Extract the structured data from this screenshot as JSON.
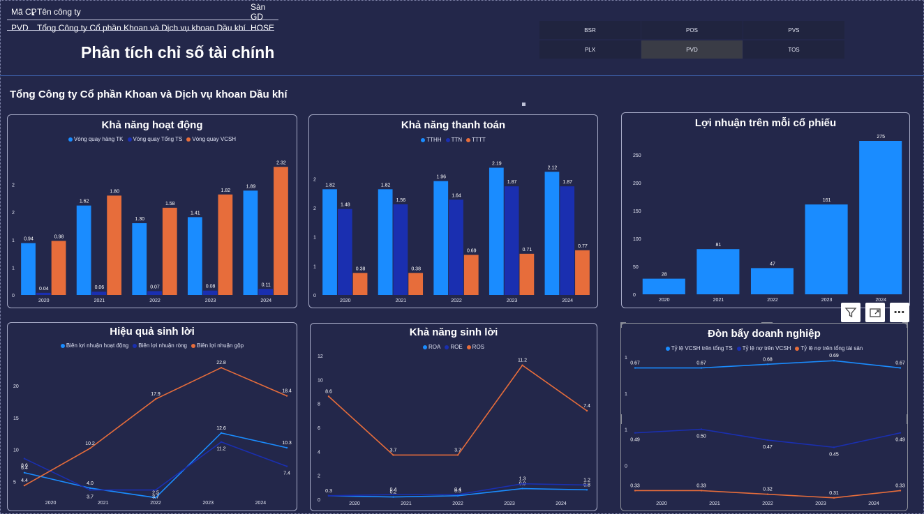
{
  "header": {
    "columns": [
      "Mã CP",
      "Tên công ty",
      "Sàn GD"
    ],
    "row": [
      "PVD",
      "Tổng Công ty Cổ phần Khoan và Dịch vụ khoan Dầu khí",
      "HOSE"
    ]
  },
  "page_title": "Phân tích chỉ số tài chính",
  "slicer": {
    "items": [
      "BSR",
      "POS",
      "PVS",
      "PLX",
      "PVD",
      "TOS"
    ],
    "selected": "PVD"
  },
  "company_name": "Tổng Công ty Cổ phần Khoan và Dịch vụ khoan Dầu khí",
  "colors": {
    "background": "#23274a",
    "light_blue": "#1a8cff",
    "dark_blue": "#1a2fb0",
    "orange": "#e76d3b"
  },
  "chart_data": [
    {
      "id": "activity",
      "type": "bar",
      "title": "Khả năng hoạt động",
      "categories": [
        "2020",
        "2021",
        "2022",
        "2023",
        "2024"
      ],
      "series": [
        {
          "name": "Vòng quay hàng TK",
          "color": "#1a8cff",
          "values": [
            0.94,
            1.62,
            1.3,
            1.41,
            1.89
          ]
        },
        {
          "name": "Vòng quay Tổng TS",
          "color": "#1a2fb0",
          "values": [
            0.04,
            0.06,
            0.07,
            0.08,
            0.11
          ]
        },
        {
          "name": "Vòng quay VCSH",
          "color": "#e76d3b",
          "values": [
            0.98,
            1.8,
            1.58,
            1.82,
            2.32
          ]
        }
      ],
      "ylim": [
        0,
        2.5
      ],
      "yticks": [
        0,
        0.5,
        1,
        1.5,
        2
      ],
      "ytick_labels": [
        "0",
        "1",
        "1",
        "2",
        "2"
      ],
      "data_labels": [
        "0.94",
        "1.62",
        "1.30",
        "1.41",
        "1.89",
        "0.04",
        "0.06",
        "0.07",
        "0.08",
        "0.11",
        "0.98",
        "1.80",
        "1.58",
        "1.82",
        "2.32"
      ],
      "legend": "top-center"
    },
    {
      "id": "liquidity",
      "type": "bar",
      "title": "Khả năng thanh toán",
      "categories": [
        "2020",
        "2021",
        "2022",
        "2023",
        "2024"
      ],
      "series": [
        {
          "name": "TTHH",
          "color": "#1a8cff",
          "values": [
            1.82,
            1.82,
            1.96,
            2.19,
            2.12
          ]
        },
        {
          "name": "TTN",
          "color": "#1a2fb0",
          "values": [
            1.48,
            1.56,
            1.64,
            1.87,
            1.87
          ]
        },
        {
          "name": "TTTT",
          "color": "#e76d3b",
          "values": [
            0.38,
            0.38,
            0.69,
            0.71,
            0.77
          ]
        }
      ],
      "ylim": [
        0,
        2.4
      ],
      "yticks": [
        0,
        0.5,
        1,
        1.5,
        2
      ],
      "ytick_labels": [
        "0",
        "1",
        "1",
        "2",
        "2"
      ],
      "data_labels": [
        "1.82",
        "1.82",
        "1.96",
        "2.19",
        "2.12",
        "1.48",
        "1.56",
        "1.64",
        "1.87",
        "1.87",
        "0.38",
        "0.38",
        "0.69",
        "0.71",
        "0.77"
      ],
      "legend": "top-center"
    },
    {
      "id": "eps",
      "type": "bar",
      "title": "Lợi nhuận trên mỗi cổ phiếu",
      "categories": [
        "2020",
        "2021",
        "2022",
        "2023",
        "2024"
      ],
      "series": [
        {
          "name": "",
          "color": "#1a8cff",
          "values": [
            28,
            81,
            47,
            161,
            275
          ]
        }
      ],
      "ylim": [
        0,
        280
      ],
      "yticks": [
        0,
        50,
        100,
        150,
        200,
        250
      ],
      "ytick_labels": [
        "0",
        "50",
        "100",
        "150",
        "200",
        "250"
      ],
      "data_labels": [
        "28",
        "81",
        "47",
        "161",
        "275"
      ]
    },
    {
      "id": "profit_margin",
      "type": "line",
      "title": "Hiệu quả sinh lời",
      "categories": [
        "2020",
        "2021",
        "2022",
        "2023",
        "2024"
      ],
      "series": [
        {
          "name": "Biên lợi nhuận hoạt động",
          "color": "#1a8cff",
          "values": [
            6.4,
            4.0,
            2.5,
            12.6,
            10.3
          ]
        },
        {
          "name": "Biên lợi nhuận ròng",
          "color": "#1a2fb0",
          "values": [
            8.6,
            3.7,
            3.7,
            11.2,
            7.4
          ]
        },
        {
          "name": "Biên lợi nhuận gộp",
          "color": "#e76d3b",
          "values": [
            4.4,
            10.2,
            17.9,
            22.8,
            18.4
          ]
        }
      ],
      "ylim": [
        3,
        25
      ],
      "yticks": [
        5,
        10,
        15,
        20
      ],
      "ytick_labels": [
        "5",
        "10",
        "15",
        "20"
      ],
      "data_labels": [
        "6.4",
        "4.0",
        "2.5",
        "12.6",
        "10.3",
        "8.6",
        "3.7",
        "3.7",
        "11.2",
        "7.4",
        "4.4",
        "10.2",
        "17.9",
        "22.8",
        "18.4"
      ],
      "legend": "top-center"
    },
    {
      "id": "profitability",
      "type": "line",
      "title": "Khả năng sinh lời",
      "categories": [
        "2020",
        "2021",
        "2022",
        "2023",
        "2024"
      ],
      "series": [
        {
          "name": "ROA",
          "color": "#1a8cff",
          "values": [
            0.3,
            0.2,
            0.3,
            0.9,
            0.8
          ]
        },
        {
          "name": "ROE",
          "color": "#1a2fb0",
          "values": [
            0.3,
            0.4,
            0.4,
            1.3,
            1.2
          ]
        },
        {
          "name": "ROS",
          "color": "#e76d3b",
          "values": [
            8.6,
            3.7,
            3.7,
            11.2,
            7.4
          ]
        }
      ],
      "ylim": [
        0,
        12
      ],
      "yticks": [
        0,
        2,
        4,
        6,
        8,
        10,
        12
      ],
      "ytick_labels": [
        "0",
        "2",
        "4",
        "6",
        "8",
        "10",
        "12"
      ],
      "data_labels": [
        "0.3",
        "0.2",
        "0.3",
        "0.9",
        "0.8",
        "",
        "0.4",
        "0.4",
        "1.3",
        "1.2",
        "8.6",
        "3.7",
        "3.7",
        "11.2",
        "7.4"
      ],
      "legend": "top-center"
    },
    {
      "id": "leverage",
      "type": "line",
      "title": "Đòn bẩy doanh nghiệp",
      "categories": [
        "2020",
        "2021",
        "2022",
        "2023",
        "2024"
      ],
      "series": [
        {
          "name": "Tỷ lệ VCSH trên tổng TS",
          "color": "#1a8cff",
          "values": [
            0.67,
            0.67,
            0.68,
            0.69,
            0.67
          ]
        },
        {
          "name": "Tỷ lệ nợ trên VCSH",
          "color": "#1a2fb0",
          "values": [
            0.49,
            0.5,
            0.47,
            0.45,
            0.49
          ]
        },
        {
          "name": "Tỷ lệ nợ trên tổng tài sản",
          "color": "#e76d3b",
          "values": [
            0.33,
            0.33,
            0.32,
            0.31,
            0.33
          ]
        }
      ],
      "ylim": [
        0.3,
        0.7
      ],
      "yticks": [
        0.4,
        0.5,
        0.6,
        0.7
      ],
      "ytick_labels": [
        "0",
        "1",
        "1",
        "1"
      ],
      "data_labels": [
        "0.67",
        "0.67",
        "0.68",
        "0.69",
        "0.67",
        "0.49",
        "0.50",
        "0.47",
        "0.45",
        "0.49",
        "0.33",
        "0.33",
        "0.32",
        "0.31",
        "0.33"
      ],
      "legend": "top-center"
    }
  ]
}
